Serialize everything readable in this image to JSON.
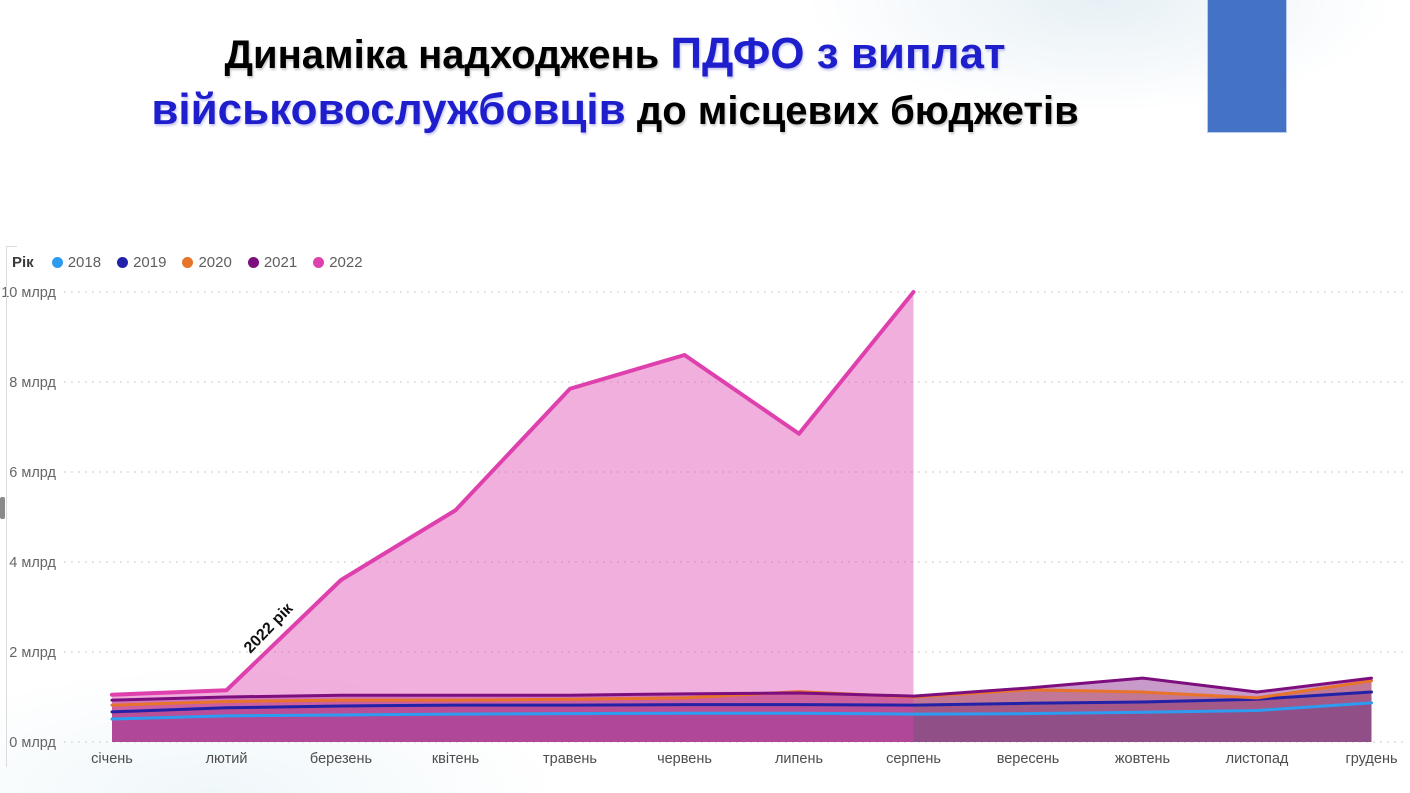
{
  "title": {
    "line1_black": "Динаміка надходжень ",
    "line1_blue": "ПДФО з виплат",
    "line2_blue": "військовослужбовців",
    "line2_black": " до місцевих бюджетів"
  },
  "decor": {
    "blue_rect_color": "#4472C4"
  },
  "legend": {
    "title": "Рік",
    "items": [
      {
        "label": "2018",
        "color": "#2D9BF0"
      },
      {
        "label": "2019",
        "color": "#2222A8"
      },
      {
        "label": "2020",
        "color": "#E8732A"
      },
      {
        "label": "2021",
        "color": "#7D0E7E"
      },
      {
        "label": "2022",
        "color": "#DE41AD"
      }
    ]
  },
  "chart_data": {
    "type": "area",
    "title": "",
    "xlabel": "",
    "ylabel": "млрд",
    "ylim": [
      0,
      10
    ],
    "yticks": [
      0,
      2,
      4,
      6,
      8,
      10
    ],
    "ytick_labels": [
      "0 млрд",
      "2 млрд",
      "4 млрд",
      "6 млрд",
      "8 млрд",
      "10 млрд"
    ],
    "grid": "dotted-horizontal",
    "legend_position": "top-left",
    "annotation": "2022 рік",
    "x": [
      "січень",
      "лютий",
      "березень",
      "квітень",
      "травень",
      "червень",
      "липень",
      "серпень",
      "вересень",
      "жовтень",
      "листопад",
      "грудень"
    ],
    "series": [
      {
        "name": "2018",
        "color": "#2D9BF0",
        "values": [
          0.51,
          0.58,
          0.6,
          0.62,
          0.63,
          0.64,
          0.64,
          0.62,
          0.63,
          0.66,
          0.7,
          0.87
        ]
      },
      {
        "name": "2019",
        "color": "#2222A8",
        "values": [
          0.67,
          0.76,
          0.8,
          0.82,
          0.82,
          0.83,
          0.83,
          0.82,
          0.86,
          0.89,
          0.95,
          1.11
        ]
      },
      {
        "name": "2020",
        "color": "#E8732A",
        "values": [
          0.82,
          0.9,
          0.93,
          0.93,
          0.95,
          0.98,
          1.12,
          1.0,
          1.16,
          1.11,
          0.98,
          1.36
        ]
      },
      {
        "name": "2021",
        "color": "#7D0E7E",
        "values": [
          0.93,
          1.0,
          1.04,
          1.04,
          1.04,
          1.07,
          1.09,
          1.02,
          1.2,
          1.42,
          1.11,
          1.42
        ]
      },
      {
        "name": "2022",
        "color": "#DE41AD",
        "values": [
          1.05,
          1.15,
          3.6,
          5.15,
          7.85,
          8.6,
          6.85,
          10.0
        ]
      }
    ]
  }
}
